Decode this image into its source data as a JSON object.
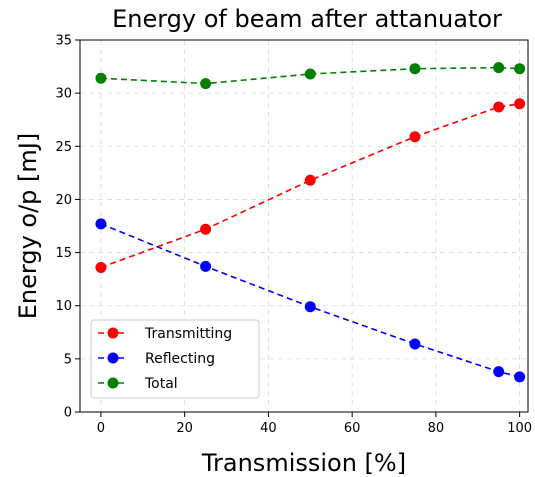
{
  "chart_data": {
    "type": "line",
    "title": "Energy of beam after attanuator",
    "xlabel": "Transmission [%]",
    "ylabel": "Energy o/p [mJ]",
    "xlim": [
      -5,
      102
    ],
    "ylim": [
      0,
      35
    ],
    "xticks": [
      0,
      20,
      40,
      60,
      80,
      100
    ],
    "yticks": [
      0,
      5,
      10,
      15,
      20,
      25,
      30,
      35
    ],
    "grid": true,
    "legend_position": "lower-left",
    "x": [
      0,
      25,
      50,
      75,
      95,
      100
    ],
    "series": [
      {
        "name": "Transmitting",
        "color": "#ff0000",
        "values": [
          13.6,
          17.2,
          21.8,
          25.9,
          28.7,
          29.0
        ]
      },
      {
        "name": "Reflecting",
        "color": "#0000ff",
        "values": [
          17.7,
          13.7,
          9.9,
          6.4,
          3.8,
          3.3
        ]
      },
      {
        "name": "Total",
        "color": "#008000",
        "values": [
          31.4,
          30.9,
          31.8,
          32.3,
          32.4,
          32.3
        ]
      }
    ]
  }
}
